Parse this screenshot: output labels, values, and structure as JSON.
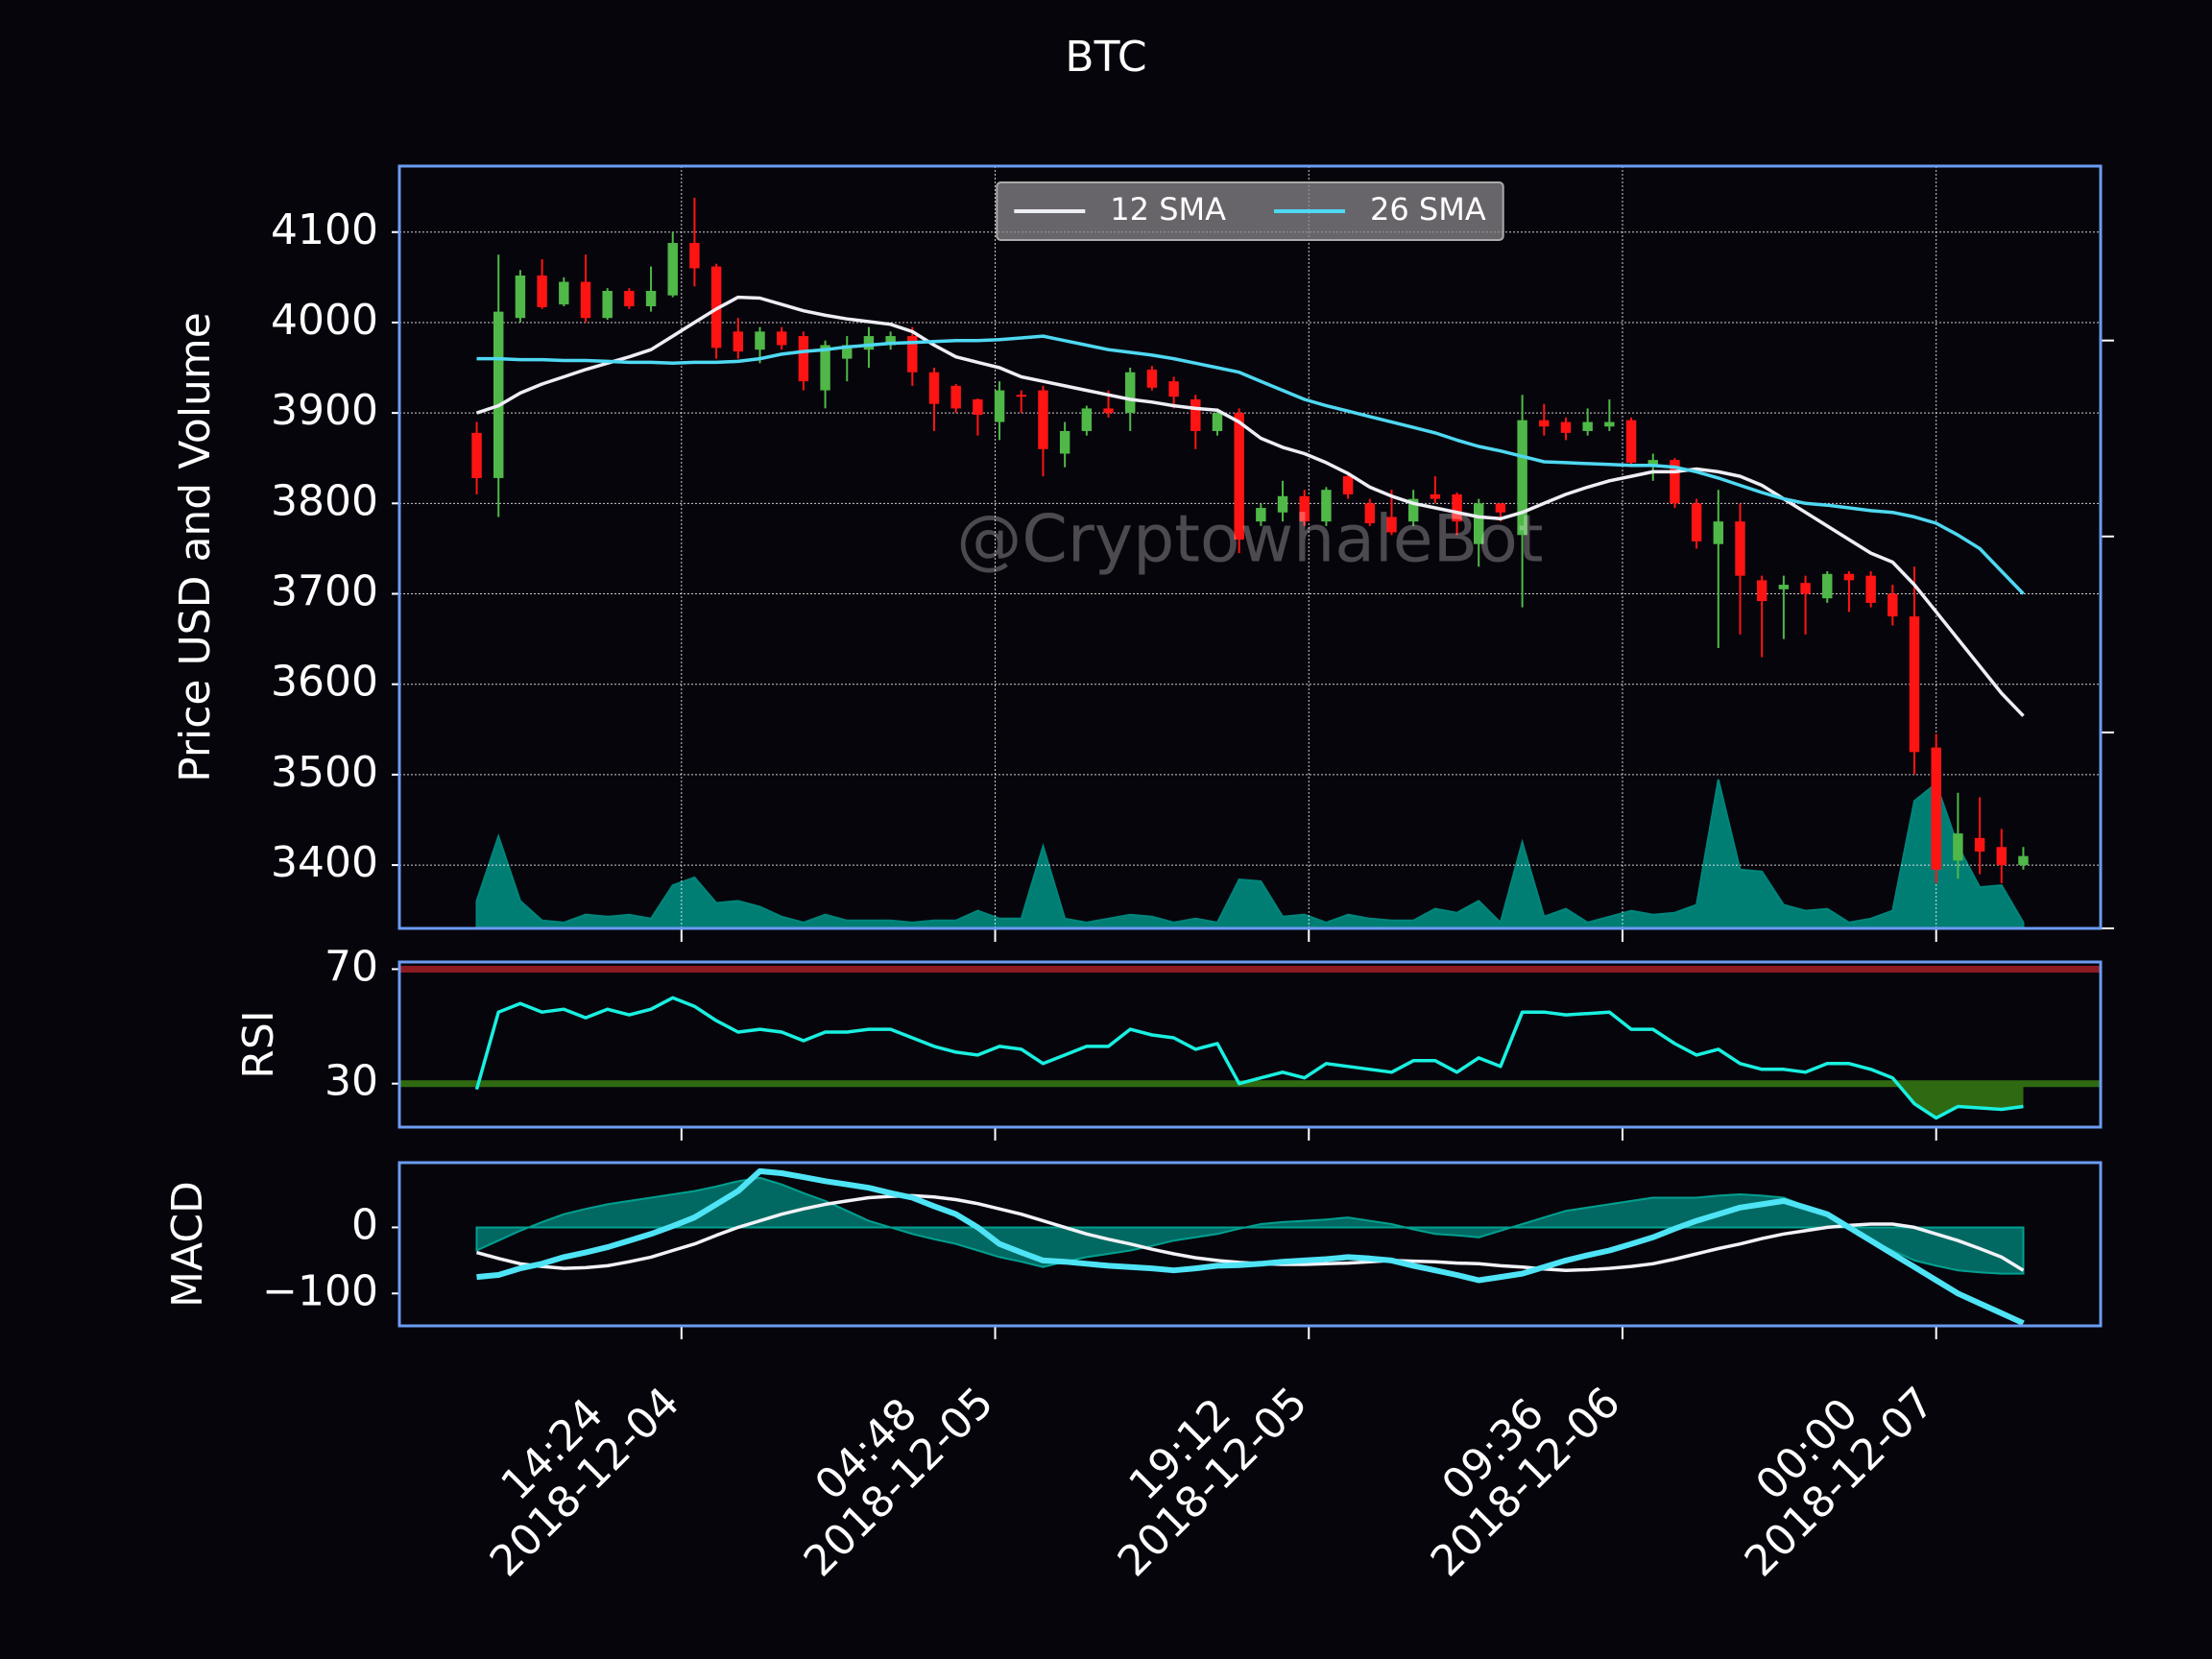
{
  "chart_data": [
    {
      "type": "candlestick",
      "title": "BTC",
      "ylabel": "Price USD and Volume",
      "annotation": "@CryptowhaleBot",
      "x": [
        "2018-12-04 05:00",
        "2018-12-04 06:00",
        "2018-12-04 07:00",
        "2018-12-04 08:00",
        "2018-12-04 09:00",
        "2018-12-04 10:00",
        "2018-12-04 11:00",
        "2018-12-04 12:00",
        "2018-12-04 13:00",
        "2018-12-04 14:00",
        "2018-12-04 15:00",
        "2018-12-04 16:00",
        "2018-12-04 17:00",
        "2018-12-04 18:00",
        "2018-12-04 19:00",
        "2018-12-04 20:00",
        "2018-12-04 21:00",
        "2018-12-04 22:00",
        "2018-12-04 23:00",
        "2018-12-05 00:00",
        "2018-12-05 01:00",
        "2018-12-05 02:00",
        "2018-12-05 03:00",
        "2018-12-05 04:00",
        "2018-12-05 05:00",
        "2018-12-05 06:00",
        "2018-12-05 07:00",
        "2018-12-05 08:00",
        "2018-12-05 09:00",
        "2018-12-05 10:00",
        "2018-12-05 11:00",
        "2018-12-05 12:00",
        "2018-12-05 13:00",
        "2018-12-05 14:00",
        "2018-12-05 15:00",
        "2018-12-05 16:00",
        "2018-12-05 17:00",
        "2018-12-05 18:00",
        "2018-12-05 19:00",
        "2018-12-05 20:00",
        "2018-12-05 21:00",
        "2018-12-05 22:00",
        "2018-12-05 23:00",
        "2018-12-06 00:00",
        "2018-12-06 01:00",
        "2018-12-06 02:00",
        "2018-12-06 03:00",
        "2018-12-06 04:00",
        "2018-12-06 05:00",
        "2018-12-06 06:00",
        "2018-12-06 07:00",
        "2018-12-06 08:00",
        "2018-12-06 09:00",
        "2018-12-06 10:00",
        "2018-12-06 11:00",
        "2018-12-06 12:00",
        "2018-12-06 13:00",
        "2018-12-06 14:00",
        "2018-12-06 15:00",
        "2018-12-06 16:00",
        "2018-12-06 17:00",
        "2018-12-06 18:00",
        "2018-12-06 19:00",
        "2018-12-06 20:00",
        "2018-12-06 21:00",
        "2018-12-06 22:00",
        "2018-12-06 23:00",
        "2018-12-07 00:00",
        "2018-12-07 01:00",
        "2018-12-07 02:00",
        "2018-12-07 03:00",
        "2018-12-07 04:00"
      ],
      "xlim": [
        "2018-12-04 01:27",
        "2018-12-07 07:33"
      ],
      "xticks": [
        {
          "value": "2018-12-04 14:24",
          "label": "14:24\n2018-12-04"
        },
        {
          "value": "2018-12-05 04:48",
          "label": "04:48\n2018-12-05"
        },
        {
          "value": "2018-12-05 19:12",
          "label": "19:12\n2018-12-05"
        },
        {
          "value": "2018-12-06 09:36",
          "label": "09:36\n2018-12-06"
        },
        {
          "value": "2018-12-07 00:00",
          "label": "00:00\n2018-12-07"
        }
      ],
      "ylim": [
        3330,
        4173
      ],
      "yticks": [
        3400,
        3500,
        3600,
        3700,
        3800,
        3900,
        4000,
        4100
      ],
      "y2lim": [
        0,
        3.89
      ],
      "y2ticks": [
        0,
        1,
        2,
        3
      ],
      "grid": true,
      "legend": "upper center",
      "up_color": "#4fb848",
      "down_color": "#ff1414",
      "open": [
        3878,
        3828,
        4005,
        4052,
        4020,
        4045,
        4005,
        4035,
        4018,
        4030,
        4088,
        4062,
        3990,
        3970,
        3990,
        3985,
        3925,
        3960,
        3970,
        3975,
        3985,
        3945,
        3930,
        3915,
        3890,
        3920,
        3925,
        3855,
        3880,
        3905,
        3900,
        3948,
        3935,
        3915,
        3880,
        3900,
        3780,
        3790,
        3808,
        3780,
        3830,
        3800,
        3785,
        3780,
        3810,
        3810,
        3755,
        3800,
        3765,
        3892,
        3890,
        3880,
        3885,
        3892,
        3842,
        3848,
        3800,
        3755,
        3780,
        3715,
        3705,
        3712,
        3695,
        3722,
        3720,
        3700,
        3675,
        3530,
        3405,
        3430,
        3420,
        3400
      ],
      "high": [
        3890,
        4075,
        4058,
        4070,
        4050,
        4075,
        4038,
        4038,
        4062,
        4100,
        4138,
        4065,
        4005,
        3995,
        3995,
        3990,
        3980,
        3985,
        3995,
        3990,
        3995,
        3950,
        3932,
        3916,
        3935,
        3925,
        3930,
        3890,
        3908,
        3925,
        3950,
        3952,
        3940,
        3920,
        3905,
        3905,
        3800,
        3825,
        3815,
        3818,
        3835,
        3805,
        3815,
        3815,
        3830,
        3812,
        3805,
        3800,
        3920,
        3910,
        3895,
        3905,
        3915,
        3895,
        3855,
        3850,
        3805,
        3815,
        3800,
        3720,
        3720,
        3720,
        3725,
        3725,
        3725,
        3710,
        3730,
        3545,
        3480,
        3475,
        3440,
        3420
      ],
      "low": [
        3810,
        3785,
        4000,
        4015,
        4018,
        4000,
        4003,
        4015,
        4012,
        4028,
        4040,
        3960,
        3960,
        3955,
        3970,
        3925,
        3905,
        3935,
        3950,
        3970,
        3930,
        3880,
        3900,
        3875,
        3870,
        3900,
        3830,
        3840,
        3875,
        3895,
        3880,
        3925,
        3905,
        3860,
        3875,
        3745,
        3775,
        3780,
        3775,
        3775,
        3805,
        3775,
        3765,
        3775,
        3800,
        3765,
        3730,
        3780,
        3685,
        3875,
        3870,
        3875,
        3880,
        3840,
        3825,
        3795,
        3750,
        3640,
        3655,
        3630,
        3650,
        3655,
        3690,
        3680,
        3685,
        3665,
        3500,
        3380,
        3385,
        3390,
        3380,
        3395
      ],
      "close": [
        3828,
        4012,
        4052,
        4017,
        4045,
        4005,
        4035,
        4018,
        4035,
        4088,
        4060,
        3972,
        3968,
        3990,
        3975,
        3935,
        3975,
        3975,
        3985,
        3985,
        3945,
        3910,
        3905,
        3898,
        3925,
        3918,
        3860,
        3880,
        3905,
        3900,
        3945,
        3928,
        3918,
        3880,
        3900,
        3760,
        3795,
        3808,
        3780,
        3815,
        3810,
        3778,
        3768,
        3805,
        3805,
        3780,
        3800,
        3790,
        3892,
        3885,
        3878,
        3890,
        3890,
        3845,
        3848,
        3800,
        3758,
        3780,
        3720,
        3692,
        3710,
        3700,
        3722,
        3715,
        3690,
        3675,
        3525,
        3395,
        3435,
        3415,
        3400,
        3410
      ],
      "series": [
        {
          "color": "#00857a",
          "kind": "area",
          "axis": "y2",
          "values": [
            0.14,
            0.47,
            0.14,
            0.04,
            0.03,
            0.07,
            0.06,
            0.07,
            0.05,
            0.22,
            0.26,
            0.13,
            0.14,
            0.11,
            0.06,
            0.03,
            0.07,
            0.04,
            0.04,
            0.04,
            0.03,
            0.04,
            0.04,
            0.09,
            0.05,
            0.05,
            0.42,
            0.05,
            0.03,
            0.05,
            0.07,
            0.06,
            0.03,
            0.05,
            0.03,
            0.25,
            0.24,
            0.06,
            0.07,
            0.03,
            0.07,
            0.05,
            0.04,
            0.04,
            0.1,
            0.08,
            0.14,
            0.03,
            0.44,
            0.06,
            0.1,
            0.03,
            0.06,
            0.09,
            0.07,
            0.08,
            0.12,
            0.76,
            0.3,
            0.29,
            0.12,
            0.09,
            0.1,
            0.03,
            0.05,
            0.09,
            0.65,
            0.74,
            0.42,
            0.21,
            0.22,
            0.03
          ]
        },
        {
          "name": "12 SMA",
          "color": "#eeeef6",
          "values": [
            3900,
            3908,
            3922,
            3932,
            3940,
            3948,
            3955,
            3962,
            3970,
            3985,
            4000,
            4015,
            4028,
            4027,
            4020,
            4013,
            4008,
            4004,
            4001,
            3998,
            3990,
            3975,
            3962,
            3956,
            3950,
            3940,
            3935,
            3930,
            3925,
            3920,
            3915,
            3912,
            3908,
            3905,
            3903,
            3890,
            3872,
            3862,
            3855,
            3845,
            3833,
            3818,
            3808,
            3800,
            3795,
            3790,
            3785,
            3783,
            3790,
            3800,
            3810,
            3818,
            3825,
            3830,
            3835,
            3835,
            3838,
            3835,
            3830,
            3820,
            3805,
            3790,
            3775,
            3760,
            3745,
            3735,
            3710,
            3680,
            3650,
            3620,
            3590,
            3565
          ]
        },
        {
          "name": "26 SMA",
          "color": "#4fd8f2",
          "values": [
            3960,
            3960,
            3959,
            3959,
            3958,
            3958,
            3957,
            3956,
            3956,
            3955,
            3956,
            3956,
            3957,
            3960,
            3965,
            3968,
            3970,
            3973,
            3975,
            3977,
            3978,
            3979,
            3980,
            3980,
            3981,
            3983,
            3985,
            3980,
            3975,
            3970,
            3967,
            3964,
            3960,
            3955,
            3950,
            3945,
            3935,
            3925,
            3915,
            3908,
            3902,
            3896,
            3890,
            3884,
            3878,
            3870,
            3863,
            3858,
            3852,
            3846,
            3845,
            3844,
            3843,
            3842,
            3842,
            3840,
            3835,
            3828,
            3820,
            3812,
            3805,
            3800,
            3798,
            3795,
            3792,
            3790,
            3785,
            3778,
            3765,
            3750,
            3725,
            3700
          ]
        }
      ]
    },
    {
      "type": "line",
      "ylabel": "RSI",
      "ylim": [
        14.8,
        72.5
      ],
      "yticks": [
        30,
        70
      ],
      "thresholds": [
        {
          "value": 70,
          "color": "#8e1b22"
        },
        {
          "value": 30,
          "color": "#2f6a12",
          "fill": "below"
        }
      ],
      "series": [
        {
          "color": "#19f0e0",
          "values": [
            28,
            55,
            58,
            55,
            56,
            53,
            56,
            54,
            56,
            60,
            57,
            52,
            48,
            49,
            48,
            45,
            48,
            48,
            49,
            49,
            46,
            43,
            41,
            40,
            43,
            42,
            37,
            40,
            43,
            43,
            49,
            47,
            46,
            42,
            44,
            30,
            32,
            34,
            32,
            37,
            36,
            35,
            34,
            38,
            38,
            34,
            39,
            36,
            55,
            55,
            54,
            54.5,
            55,
            49,
            49,
            44,
            40,
            42,
            37,
            35,
            35,
            34,
            37,
            37,
            35,
            32,
            23,
            18,
            22,
            21.5,
            21,
            22
          ]
        }
      ]
    },
    {
      "type": "line",
      "ylabel": "MACD",
      "ylim": [
        -149,
        98
      ],
      "yticks": [
        {
          "value": -100,
          "label": "−100"
        },
        0
      ],
      "series": [
        {
          "color": "#00a090",
          "kind": "area",
          "values": [
            -35,
            -20,
            -5,
            8,
            20,
            28,
            35,
            40,
            45,
            50,
            55,
            62,
            70,
            75,
            65,
            52,
            40,
            25,
            10,
            0,
            -10,
            -18,
            -25,
            -35,
            -45,
            -52,
            -60,
            -52,
            -45,
            -40,
            -35,
            -28,
            -20,
            -15,
            -10,
            -2,
            5,
            8,
            10,
            12,
            15,
            10,
            5,
            -3,
            -10,
            -12,
            -15,
            -5,
            5,
            15,
            25,
            30,
            35,
            40,
            45,
            45,
            45,
            48,
            50,
            48,
            45,
            32,
            20,
            0,
            -20,
            -35,
            -50,
            -58,
            -65,
            -68,
            -70,
            -70
          ]
        },
        {
          "color": "#f2f2f8",
          "values": [
            -38,
            -47,
            -55,
            -59,
            -62,
            -61,
            -58,
            -52,
            -45,
            -35,
            -25,
            -12,
            0,
            10,
            20,
            28,
            35,
            40,
            45,
            47,
            48,
            46,
            42,
            36,
            28,
            20,
            10,
            0,
            -10,
            -18,
            -25,
            -33,
            -40,
            -46,
            -50,
            -53,
            -55,
            -56,
            -56,
            -55,
            -54,
            -52,
            -50,
            -51,
            -52,
            -54,
            -55,
            -58,
            -60,
            -63,
            -65,
            -64,
            -62,
            -59,
            -55,
            -48,
            -40,
            -32,
            -25,
            -17,
            -10,
            -5,
            0,
            3,
            5,
            5,
            0,
            -10,
            -20,
            -32,
            -45,
            -65
          ]
        },
        {
          "color": "#4ee4f6",
          "width": 6,
          "values": [
            -75,
            -72,
            -62,
            -55,
            -45,
            -38,
            -30,
            -20,
            -10,
            2,
            15,
            35,
            55,
            85,
            82,
            76,
            70,
            65,
            60,
            52,
            45,
            32,
            20,
            0,
            -25,
            -38,
            -50,
            -52,
            -55,
            -58,
            -60,
            -62,
            -65,
            -62,
            -58,
            -57,
            -55,
            -52,
            -50,
            -48,
            -45,
            -47,
            -50,
            -58,
            -65,
            -72,
            -80,
            -75,
            -70,
            -60,
            -50,
            -42,
            -35,
            -25,
            -15,
            -2,
            10,
            20,
            30,
            35,
            40,
            30,
            20,
            0,
            -20,
            -40,
            -60,
            -80,
            -100,
            -115,
            -130,
            -145
          ]
        }
      ]
    }
  ]
}
